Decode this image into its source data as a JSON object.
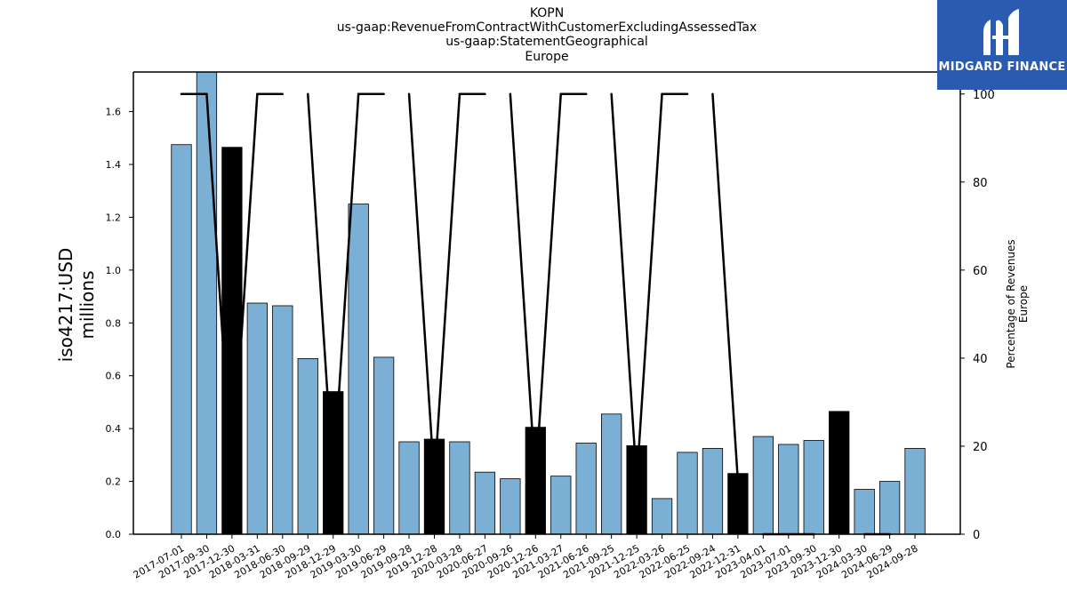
{
  "chart_data": {
    "type": "bar",
    "title_lines": [
      "KOPN",
      "us-gaap:RevenueFromContractWithCustomerExcludingAssessedTax",
      "us-gaap:StatementGeographical",
      "Europe"
    ],
    "ylabel_left": [
      "iso4217:USD",
      "millions"
    ],
    "ylabel_right": [
      "Percentage of Revenues",
      "Europe"
    ],
    "categories": [
      "2017-07-01",
      "2017-09-30",
      "2017-12-30",
      "2018-03-31",
      "2018-06-30",
      "2018-09-29",
      "2018-12-29",
      "2019-03-30",
      "2019-06-29",
      "2019-09-28",
      "2019-12-28",
      "2020-03-28",
      "2020-06-27",
      "2020-09-26",
      "2020-12-26",
      "2021-03-27",
      "2021-06-26",
      "2021-09-25",
      "2021-12-25",
      "2022-03-26",
      "2022-06-25",
      "2022-09-24",
      "2022-12-31",
      "2023-04-01",
      "2023-07-01",
      "2023-09-30",
      "2023-12-30",
      "2024-03-30",
      "2024-06-29",
      "2024-09-28"
    ],
    "series": [
      {
        "values": [
          1.475,
          1.75,
          1.465,
          0.875,
          0.865,
          0.665,
          0.54,
          1.25,
          0.67,
          0.35,
          0.36,
          0.35,
          0.235,
          0.21,
          0.405,
          0.22,
          0.345,
          0.455,
          0.335,
          0.135,
          0.31,
          0.325,
          0.23,
          0.37,
          0.34,
          0.355,
          0.465,
          0.17,
          0.2,
          0.325
        ],
        "highlight": [
          false,
          false,
          true,
          false,
          false,
          false,
          true,
          false,
          false,
          false,
          true,
          false,
          false,
          false,
          true,
          false,
          false,
          false,
          true,
          false,
          false,
          false,
          true,
          false,
          false,
          false,
          true,
          false,
          false,
          false
        ],
        "color": "#7bafd4",
        "highlight_color": "#000000"
      },
      {
        "type": "line",
        "axis": "right",
        "values": [
          100,
          100,
          null,
          100,
          100,
          null,
          null,
          100,
          100,
          null,
          null,
          100,
          100,
          null,
          null,
          100,
          100,
          null,
          null,
          100,
          100,
          null,
          null,
          0,
          0,
          0,
          null,
          0,
          0,
          null
        ],
        "color": "#000000"
      }
    ],
    "ylim_left": [
      0,
      1.75
    ],
    "yticks_left": [
      "0.0",
      "0.2",
      "0.4",
      "0.6",
      "0.8",
      "1.0",
      "1.2",
      "1.4",
      "1.6"
    ],
    "ylim_right": [
      0,
      105
    ],
    "yticks_right": [
      "0",
      "20",
      "40",
      "60",
      "80",
      "100"
    ],
    "grid": false
  },
  "logo": {
    "text": "MIDGARD FINANCE",
    "bg": "#2b5bb0"
  }
}
